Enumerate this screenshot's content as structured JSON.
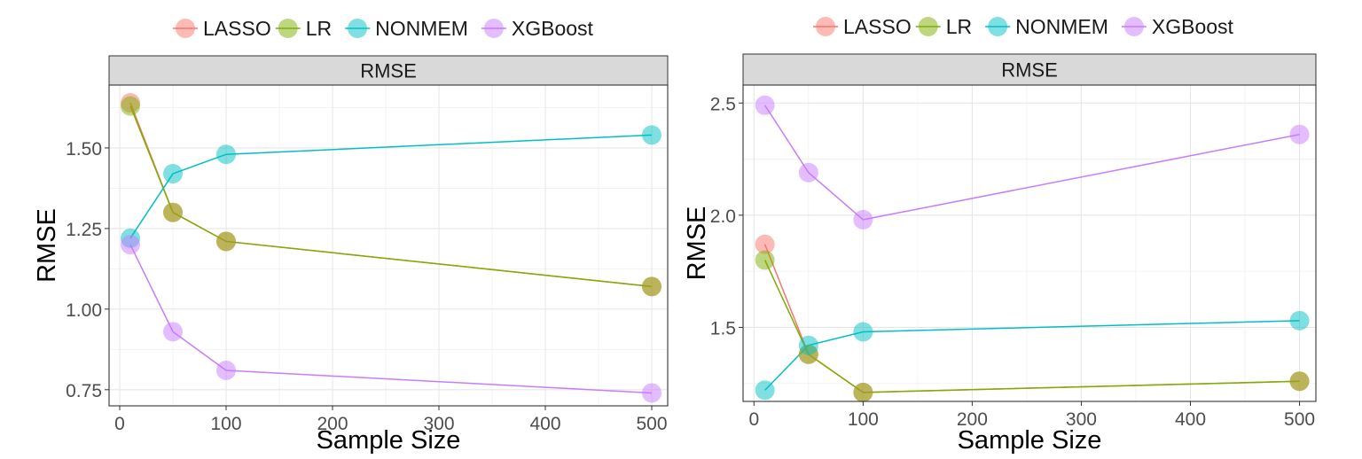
{
  "chart_data": [
    {
      "type": "line",
      "facet_label": "RMSE",
      "xlabel": "Sample Size",
      "ylabel": "RMSE",
      "xlim": [
        -10,
        515
      ],
      "ylim": [
        0.7,
        1.695
      ],
      "xticks": [
        0,
        100,
        200,
        300,
        400,
        500
      ],
      "yticks": [
        0.75,
        1.0,
        1.25,
        1.5
      ],
      "ytick_labels": [
        "0.75",
        "1.00",
        "1.25",
        "1.50"
      ],
      "grid": true,
      "legend_position": "top",
      "x": [
        10,
        50,
        100,
        500
      ],
      "series": [
        {
          "name": "LASSO",
          "color": "#F8766D",
          "values": [
            1.64,
            1.3,
            1.21,
            1.07
          ]
        },
        {
          "name": "LR",
          "color": "#7CAE00",
          "values": [
            1.63,
            1.3,
            1.21,
            1.07
          ]
        },
        {
          "name": "NONMEM",
          "color": "#00BFC4",
          "values": [
            1.22,
            1.42,
            1.48,
            1.54
          ]
        },
        {
          "name": "XGBoost",
          "color": "#C77CFF",
          "values": [
            1.2,
            0.93,
            0.81,
            0.74
          ]
        }
      ]
    },
    {
      "type": "line",
      "facet_label": "RMSE",
      "xlabel": "Sample Size",
      "ylabel": "RMSE",
      "xlim": [
        -10,
        515
      ],
      "ylim": [
        1.17,
        2.58
      ],
      "xticks": [
        0,
        100,
        200,
        300,
        400,
        500
      ],
      "yticks": [
        1.5,
        2.0,
        2.5
      ],
      "ytick_labels": [
        "1.5",
        "2.0",
        "2.5"
      ],
      "grid": true,
      "legend_position": "top",
      "x": [
        10,
        50,
        100,
        500
      ],
      "series": [
        {
          "name": "LASSO",
          "color": "#F8766D",
          "values": [
            1.87,
            1.38,
            1.21,
            1.26
          ]
        },
        {
          "name": "LR",
          "color": "#7CAE00",
          "values": [
            1.8,
            1.38,
            1.21,
            1.26
          ]
        },
        {
          "name": "NONMEM",
          "color": "#00BFC4",
          "values": [
            1.22,
            1.42,
            1.48,
            1.53
          ]
        },
        {
          "name": "XGBoost",
          "color": "#C77CFF",
          "values": [
            2.49,
            2.19,
            1.98,
            2.36
          ]
        }
      ]
    }
  ]
}
